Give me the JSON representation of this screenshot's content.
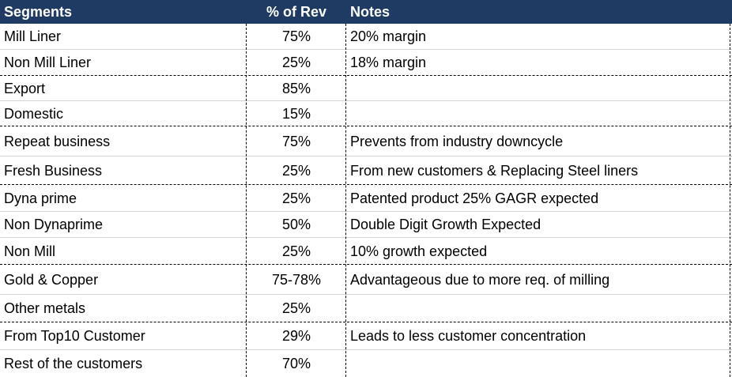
{
  "table": {
    "columns": [
      "Segments",
      "% of Rev",
      "Notes"
    ],
    "groups": [
      {
        "rows": [
          {
            "segment": "Mill Liner",
            "share": "75%",
            "notes": "20% margin"
          },
          {
            "segment": "Non Mill Liner",
            "share": "25%",
            "notes": "18% margin"
          }
        ]
      },
      {
        "rows": [
          {
            "segment": "Export",
            "share": "85%"
          },
          {
            "segment": "Domestic",
            "share": "15%"
          }
        ]
      },
      {
        "rows": [
          {
            "segment": "Repeat business",
            "share": "75%",
            "notes": "Prevents from industry downcycle"
          },
          {
            "segment": "Fresh Business",
            "share": "25%",
            "notes": "From new customers & Replacing Steel liners"
          }
        ]
      },
      {
        "rows": [
          {
            "segment": "Dyna prime",
            "share": "25%",
            "notes": "Patented product 25% GAGR expected"
          },
          {
            "segment": "Non Dynaprime",
            "share": "50%",
            "notes": "Double Digit Growth Expected"
          },
          {
            "segment": "Non Mill",
            "share": "25%",
            "notes": "10% growth expected"
          }
        ]
      },
      {
        "rows": [
          {
            "segment": "Gold & Copper",
            "share": "75-78%",
            "notes": "Advantageous due to more req. of milling"
          },
          {
            "segment": "Other metals",
            "share": "25%"
          }
        ]
      },
      {
        "rows": [
          {
            "segment": "From Top10 Customer",
            "share": "29%",
            "notes": "Leads to less customer concentration"
          },
          {
            "segment": "Rest of the customers",
            "share": "70%"
          }
        ]
      }
    ]
  }
}
